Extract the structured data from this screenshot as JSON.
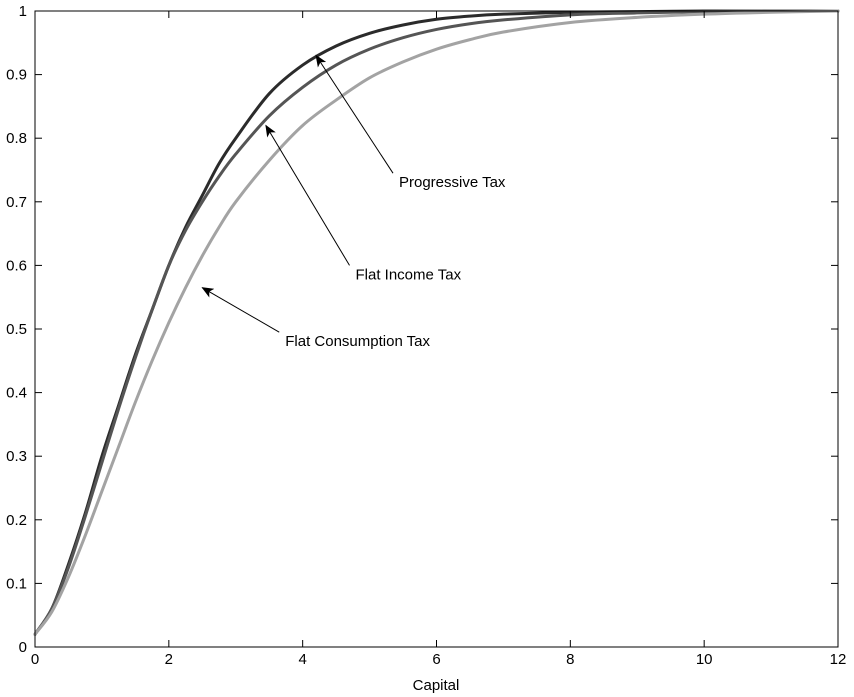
{
  "chart_data": {
    "type": "line",
    "title": "",
    "xlabel": "Capital",
    "ylabel": "",
    "xlim": [
      0,
      12
    ],
    "ylim": [
      0,
      1
    ],
    "grid": false,
    "legend": "none",
    "x_ticks": [
      "0",
      "2",
      "4",
      "6",
      "8",
      "10",
      "12"
    ],
    "y_ticks": [
      "0",
      "0.1",
      "0.2",
      "0.3",
      "0.4",
      "0.5",
      "0.6",
      "0.7",
      "0.8",
      "0.9",
      "1"
    ],
    "series": [
      {
        "key": "progressive",
        "color": "#2b2b2b",
        "x": [
          0,
          0.25,
          0.5,
          0.75,
          1,
          1.25,
          1.5,
          1.75,
          2,
          2.25,
          2.5,
          2.75,
          3,
          3.5,
          4,
          4.5,
          5,
          5.5,
          6,
          6.5,
          7,
          8,
          9,
          10,
          11,
          12
        ],
        "y": [
          0.02,
          0.06,
          0.13,
          0.21,
          0.3,
          0.38,
          0.46,
          0.53,
          0.6,
          0.66,
          0.71,
          0.76,
          0.8,
          0.87,
          0.915,
          0.945,
          0.965,
          0.978,
          0.987,
          0.992,
          0.995,
          0.998,
          0.999,
          1.0,
          1.0,
          1.0
        ]
      },
      {
        "key": "flat_income",
        "color": "#555555",
        "x": [
          0,
          0.25,
          0.5,
          0.75,
          1,
          1.25,
          1.5,
          1.75,
          2,
          2.25,
          2.5,
          2.75,
          3,
          3.5,
          4,
          4.5,
          5,
          5.5,
          6,
          6.5,
          7,
          8,
          9,
          10,
          11,
          12
        ],
        "y": [
          0.02,
          0.06,
          0.125,
          0.205,
          0.29,
          0.375,
          0.455,
          0.53,
          0.6,
          0.655,
          0.7,
          0.74,
          0.775,
          0.835,
          0.88,
          0.915,
          0.94,
          0.958,
          0.971,
          0.98,
          0.986,
          0.994,
          0.997,
          0.999,
          1.0,
          1.0
        ]
      },
      {
        "key": "flat_consumption",
        "color": "#a3a3a3",
        "x": [
          0,
          0.25,
          0.5,
          0.75,
          1,
          1.25,
          1.5,
          1.75,
          2,
          2.25,
          2.5,
          2.75,
          3,
          3.5,
          4,
          4.5,
          5,
          5.5,
          6,
          6.5,
          7,
          8,
          9,
          10,
          11,
          12
        ],
        "y": [
          0.02,
          0.055,
          0.11,
          0.175,
          0.245,
          0.315,
          0.385,
          0.45,
          0.51,
          0.565,
          0.615,
          0.66,
          0.7,
          0.765,
          0.82,
          0.86,
          0.895,
          0.92,
          0.94,
          0.955,
          0.967,
          0.982,
          0.99,
          0.995,
          0.998,
          1.0
        ]
      }
    ],
    "annotations": [
      {
        "key": "progressive",
        "text": "Progressive Tax",
        "arrow_to": [
          4.2,
          0.93
        ],
        "text_at": [
          5.35,
          0.745
        ]
      },
      {
        "key": "flat_income",
        "text": "Flat Income Tax",
        "arrow_to": [
          3.45,
          0.82
        ],
        "text_at": [
          4.7,
          0.6
        ]
      },
      {
        "key": "flat_consumption",
        "text": "Flat Consumption Tax",
        "arrow_to": [
          2.5,
          0.565
        ],
        "text_at": [
          3.65,
          0.495
        ]
      }
    ]
  }
}
